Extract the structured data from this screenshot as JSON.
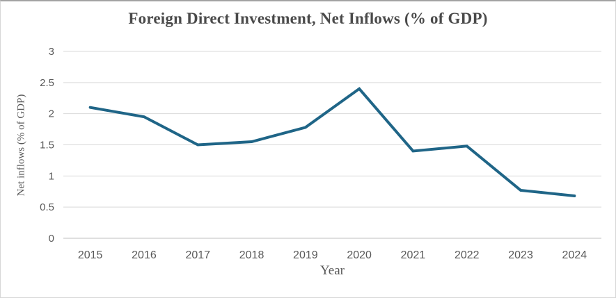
{
  "chart_data": {
    "type": "line",
    "title": "Foreign Direct Investment, Net Inflows (% of GDP)",
    "xlabel": "Year",
    "ylabel": "Net inflows (% of GDP)",
    "categories": [
      "2015",
      "2016",
      "2017",
      "2018",
      "2019",
      "2020",
      "2021",
      "2022",
      "2023",
      "2024"
    ],
    "series": [
      {
        "name": "Net inflows (% of GDP)",
        "values": [
          2.1,
          1.95,
          1.5,
          1.55,
          1.78,
          2.4,
          1.4,
          1.48,
          0.77,
          0.68
        ]
      }
    ],
    "ylim": [
      0,
      3
    ],
    "ytick_step": 0.5,
    "ytick_labels": [
      "0",
      "0.5",
      "1",
      "1.5",
      "2",
      "2.5",
      "3"
    ],
    "grid": true,
    "legend": false,
    "colors": {
      "line": "#1F6587",
      "gridline": "#D9D9D9",
      "axis_line": "#BFBFBF",
      "tick_text": "#595959",
      "title_text": "#4A4A4A",
      "background": "#FFFFFF"
    }
  }
}
